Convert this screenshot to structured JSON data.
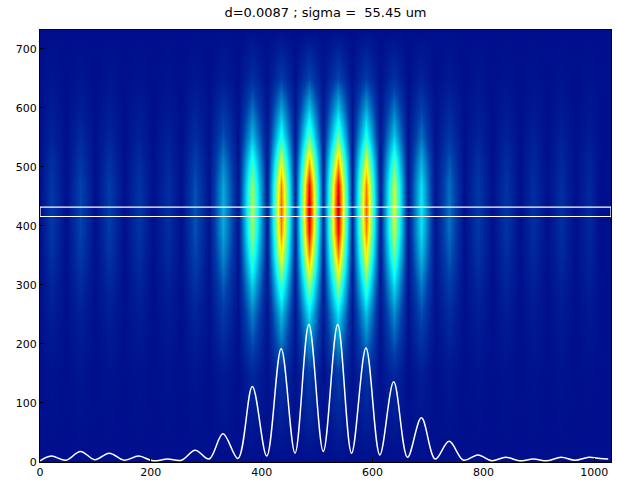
{
  "chart_data": {
    "type": "heatmap",
    "title": "d=0.0087 ; sigma =  55.45 um",
    "xlim": [
      0,
      1030
    ],
    "ylim": [
      0,
      732
    ],
    "xticks": [
      0,
      200,
      400,
      600,
      800,
      1000
    ],
    "yticks": [
      0,
      100,
      200,
      300,
      400,
      500,
      600,
      700
    ],
    "color_range": [
      0,
      255
    ],
    "x": [
      0,
      20,
      47,
      73,
      99,
      125,
      152,
      178,
      204,
      230,
      255,
      280,
      305,
      330,
      357,
      383,
      409,
      435,
      460,
      485,
      511,
      537,
      562,
      588,
      613,
      638,
      663,
      688,
      713,
      738,
      764,
      790,
      815,
      840,
      865,
      890,
      915,
      940,
      965,
      990,
      1010,
      1025
    ],
    "y": [
      0,
      150,
      250,
      300,
      350,
      390,
      430,
      470,
      510,
      550,
      600,
      650,
      732
    ],
    "cells": [
      [
        8,
        8,
        8,
        8,
        8,
        8,
        8,
        8,
        8,
        8,
        8,
        8,
        8,
        8,
        8,
        8,
        8,
        8,
        8,
        8,
        8,
        8,
        8,
        8,
        8,
        8,
        8,
        8,
        8,
        8,
        8,
        8,
        8,
        8,
        8,
        8,
        8,
        8,
        8,
        8,
        8,
        8
      ],
      [
        8,
        10,
        8,
        11,
        8,
        10,
        8,
        10,
        8,
        10,
        8,
        11,
        8,
        14,
        8,
        21,
        9,
        27,
        9,
        31,
        9,
        31,
        9,
        27,
        9,
        22,
        8,
        16,
        8,
        12,
        8,
        10,
        8,
        10,
        8,
        10,
        8,
        10,
        8,
        9,
        8,
        8
      ],
      [
        8,
        16,
        8,
        17,
        8,
        16,
        8,
        15,
        8,
        14,
        8,
        19,
        9,
        30,
        9,
        54,
        10,
        75,
        12,
        87,
        13,
        87,
        12,
        75,
        10,
        58,
        9,
        37,
        9,
        23,
        8,
        16,
        8,
        15,
        8,
        14,
        8,
        14,
        8,
        13,
        8,
        8
      ],
      [
        8,
        20,
        8,
        23,
        8,
        21,
        8,
        19,
        8,
        17,
        8,
        26,
        9,
        42,
        10,
        81,
        12,
        114,
        15,
        133,
        16,
        133,
        15,
        114,
        12,
        86,
        10,
        53,
        9,
        31,
        8,
        20,
        8,
        19,
        8,
        17,
        8,
        17,
        8,
        16,
        8,
        8
      ],
      [
        8,
        26,
        8,
        30,
        8,
        27,
        8,
        24,
        8,
        22,
        8,
        34,
        10,
        58,
        11,
        114,
        14,
        162,
        18,
        190,
        19,
        190,
        18,
        162,
        14,
        122,
        11,
        74,
        10,
        42,
        8,
        26,
        8,
        24,
        8,
        22,
        8,
        22,
        8,
        19,
        8,
        8
      ],
      [
        8,
        29,
        8,
        34,
        8,
        31,
        8,
        27,
        8,
        24,
        8,
        38,
        10,
        67,
        12,
        133,
        15,
        190,
        19,
        224,
        21,
        224,
        19,
        190,
        15,
        143,
        12,
        86,
        10,
        48,
        8,
        29,
        8,
        27,
        8,
        24,
        8,
        24,
        8,
        21,
        8,
        8
      ],
      [
        8,
        30,
        8,
        35,
        8,
        32,
        8,
        28,
        8,
        25,
        8,
        40,
        10,
        70,
        12,
        140,
        15,
        200,
        20,
        235,
        22,
        235,
        20,
        200,
        15,
        150,
        12,
        90,
        10,
        50,
        8,
        30,
        8,
        28,
        8,
        25,
        8,
        25,
        8,
        22,
        8,
        8
      ],
      [
        8,
        29,
        8,
        34,
        8,
        31,
        8,
        27,
        8,
        24,
        8,
        38,
        10,
        67,
        12,
        133,
        15,
        190,
        19,
        224,
        21,
        224,
        19,
        190,
        15,
        143,
        12,
        86,
        10,
        48,
        8,
        29,
        8,
        27,
        8,
        24,
        8,
        24,
        8,
        21,
        8,
        8
      ],
      [
        8,
        25,
        8,
        28,
        8,
        26,
        8,
        23,
        8,
        21,
        8,
        32,
        10,
        55,
        11,
        107,
        13,
        152,
        17,
        178,
        19,
        178,
        17,
        152,
        13,
        115,
        11,
        70,
        10,
        40,
        8,
        25,
        8,
        23,
        8,
        21,
        8,
        21,
        8,
        19,
        8,
        8
      ],
      [
        8,
        19,
        8,
        22,
        8,
        20,
        8,
        18,
        8,
        17,
        8,
        24,
        9,
        39,
        10,
        74,
        12,
        104,
        14,
        122,
        15,
        122,
        14,
        104,
        12,
        79,
        10,
        49,
        9,
        29,
        8,
        19,
        8,
        18,
        8,
        17,
        8,
        17,
        8,
        15,
        8,
        8
      ],
      [
        8,
        15,
        8,
        16,
        8,
        15,
        8,
        14,
        8,
        13,
        8,
        18,
        9,
        27,
        9,
        48,
        10,
        66,
        12,
        76,
        12,
        76,
        12,
        66,
        10,
        51,
        9,
        33,
        9,
        21,
        8,
        15,
        8,
        14,
        8,
        13,
        8,
        13,
        8,
        12,
        8,
        8
      ],
      [
        8,
        11,
        8,
        11,
        8,
        11,
        8,
        10,
        8,
        10,
        8,
        12,
        8,
        15,
        8,
        24,
        9,
        31,
        9,
        35,
        10,
        35,
        9,
        31,
        9,
        25,
        8,
        18,
        8,
        13,
        8,
        11,
        8,
        10,
        8,
        10,
        8,
        10,
        8,
        10,
        8,
        8
      ],
      [
        8,
        8,
        8,
        8,
        8,
        8,
        8,
        8,
        8,
        8,
        8,
        8,
        8,
        8,
        8,
        8,
        8,
        8,
        8,
        8,
        8,
        8,
        8,
        8,
        8,
        8,
        8,
        8,
        8,
        8,
        8,
        8,
        8,
        8,
        8,
        8,
        8,
        8,
        8,
        8,
        8,
        8
      ]
    ],
    "profile": {
      "type": "line",
      "color": "#ffffff",
      "values": [
        2,
        10,
        3,
        18,
        4,
        15,
        3,
        10,
        2,
        5,
        3,
        20,
        5,
        48,
        6,
        128,
        10,
        192,
        15,
        233,
        18,
        233,
        15,
        193,
        12,
        136,
        8,
        75,
        5,
        35,
        3,
        12,
        2,
        8,
        2,
        5,
        2,
        8,
        3,
        8,
        6,
        5
      ]
    },
    "band": {
      "y": [
        416,
        432
      ],
      "color": "#ffffff"
    }
  }
}
